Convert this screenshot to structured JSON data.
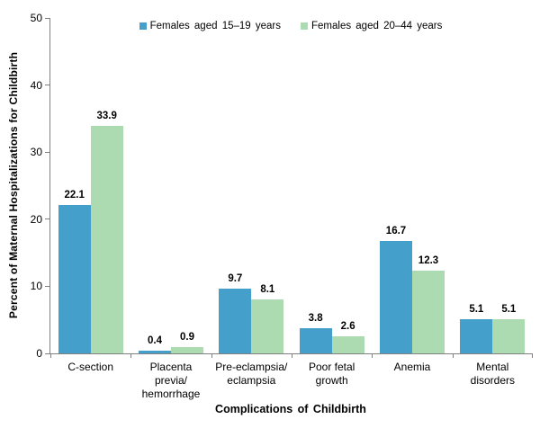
{
  "chart_data": {
    "type": "bar",
    "title": "",
    "xlabel": "Complications of Childbirth",
    "ylabel": "Percent of Maternal Hospitalizations for Childbirth",
    "ylim": [
      0,
      50
    ],
    "yticks": [
      0,
      10,
      20,
      30,
      40,
      50
    ],
    "grid": false,
    "legend_position": "top-center",
    "axis_color": "#808080",
    "text_color": "#000000",
    "categories": [
      "C-section",
      "Placenta previa/hemorrhage",
      "Pre-eclampsia/eclampsia",
      "Poor fetal growth",
      "Anemia",
      "Mental disorders"
    ],
    "category_tick_lines": [
      [
        "C-section"
      ],
      [
        "Placenta",
        "previa/",
        "hemorrhage"
      ],
      [
        "Pre-eclampsia/",
        "eclampsia"
      ],
      [
        "Poor fetal",
        "growth"
      ],
      [
        "Anemia"
      ],
      [
        "Mental",
        "disorders"
      ]
    ],
    "series": [
      {
        "name": "Females aged 15–19 years",
        "color": "#44A0CB",
        "values": [
          22.1,
          0.4,
          9.7,
          3.8,
          16.7,
          5.1
        ]
      },
      {
        "name": "Females aged 20–44 years",
        "color": "#ACDBB1",
        "values": [
          33.9,
          0.9,
          8.1,
          2.6,
          12.3,
          5.1
        ]
      }
    ]
  }
}
